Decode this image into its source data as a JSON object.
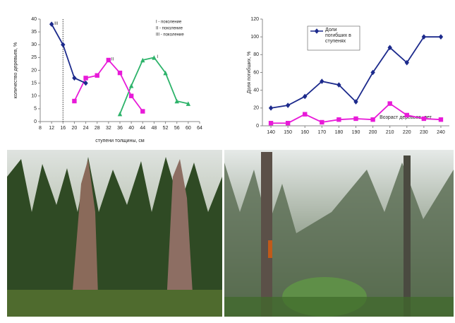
{
  "chart_data": [
    {
      "type": "line",
      "ylabel": "количество деревьев, %",
      "xlabel": "ступени толщины, см",
      "xlim": [
        8,
        64
      ],
      "xticks": [
        8,
        12,
        16,
        20,
        24,
        28,
        32,
        36,
        40,
        44,
        48,
        52,
        56,
        60,
        64
      ],
      "ylim": [
        0,
        40
      ],
      "yticks": [
        0,
        5,
        10,
        15,
        20,
        25,
        30,
        35,
        40
      ],
      "grid": false,
      "vline": 16,
      "legend": "upper right",
      "series": [
        {
          "name": "I - поколение",
          "color": "#2db36a",
          "marker": "triangle",
          "x": [
            36,
            40,
            44,
            48,
            52,
            56,
            60
          ],
          "values": [
            3,
            14,
            24,
            25,
            19,
            8,
            7
          ]
        },
        {
          "name": "II - поколение",
          "color": "#e81ad8",
          "marker": "square",
          "x": [
            20,
            24,
            28,
            32,
            36,
            40,
            44
          ],
          "values": [
            8,
            17,
            18,
            24,
            19,
            10,
            4
          ]
        },
        {
          "name": "III - поколение",
          "color": "#1c2a8c",
          "marker": "diamond",
          "x": [
            12,
            16,
            20,
            24
          ],
          "values": [
            38,
            30,
            17,
            15
          ]
        }
      ],
      "annotations": [
        {
          "text": "III",
          "x": 12,
          "y": 38
        },
        {
          "text": "II",
          "x": 32,
          "y": 24
        },
        {
          "text": "I",
          "x": 48,
          "y": 25
        }
      ]
    },
    {
      "type": "line",
      "ylabel": "Доля погибших, %",
      "xlabel": "Возраст деревьев, лет",
      "xlim": [
        135,
        245
      ],
      "xticks": [
        140,
        150,
        160,
        170,
        180,
        190,
        200,
        210,
        220,
        230,
        240
      ],
      "ylim": [
        0,
        120
      ],
      "yticks": [
        0,
        20,
        40,
        60,
        80,
        100,
        120
      ],
      "grid": false,
      "legend": "upper left",
      "series": [
        {
          "name": "Доли погибших в ступенях",
          "color": "#1c2a8c",
          "marker": "diamond",
          "x": [
            140,
            150,
            160,
            170,
            180,
            190,
            200,
            210,
            220,
            230,
            240
          ],
          "values": [
            20,
            23,
            33,
            50,
            46,
            27,
            60,
            88,
            71,
            100,
            100
          ]
        },
        {
          "color": "#e81ad8",
          "marker": "square",
          "x": [
            140,
            150,
            160,
            170,
            180,
            190,
            200,
            210,
            220,
            230,
            240
          ],
          "values": [
            3,
            3,
            13,
            4,
            7,
            8,
            7,
            25,
            12,
            8,
            7
          ]
        }
      ]
    }
  ]
}
